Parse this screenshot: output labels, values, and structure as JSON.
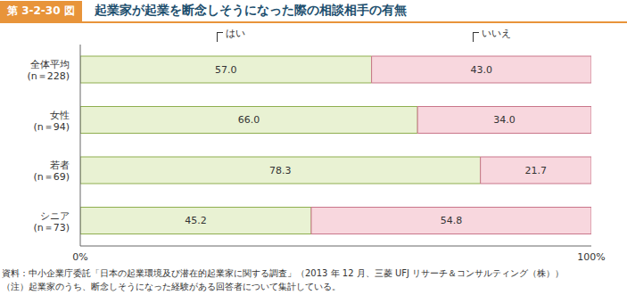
{
  "figure_label": "第 3-2-30 図",
  "source": "資料：中小企業庁委託「日本の起業環境及び潜在的起業家に関する調査」（2013 年 12 月、三菱 UFJ リサーチ＆コンサルティング（株））",
  "note": "（注）起業家のうち、断念しそうになった経験がある回答者について集計している。",
  "chart_data": {
    "type": "bar",
    "title": "起業家が起業を断念しそうになった際の相談相手の有無",
    "orientation": "horizontal",
    "stacked": true,
    "data_labels": true,
    "legend": "top",
    "categories": [
      "全体平均\n(n＝228)",
      "女性\n(n＝94)",
      "若者\n(n＝69)",
      "シニア\n(n＝73)"
    ],
    "series": [
      {
        "name": "はい",
        "color": "#e9f2d3",
        "values": [
          57.0,
          66.0,
          78.3,
          45.2
        ],
        "value_labels": [
          "57.0",
          "66.0",
          "78.3",
          "45.2"
        ]
      },
      {
        "name": "いいえ",
        "color": "#f8d7de",
        "values": [
          43.0,
          34.0,
          21.7,
          54.8
        ],
        "value_labels": [
          "43.0",
          "34.0",
          "21.7",
          "54.8"
        ]
      }
    ],
    "xlim": [
      0,
      100
    ],
    "xticks": [
      {
        "value": 0,
        "label": "0%"
      },
      {
        "value": 100,
        "label": "100%"
      }
    ]
  }
}
